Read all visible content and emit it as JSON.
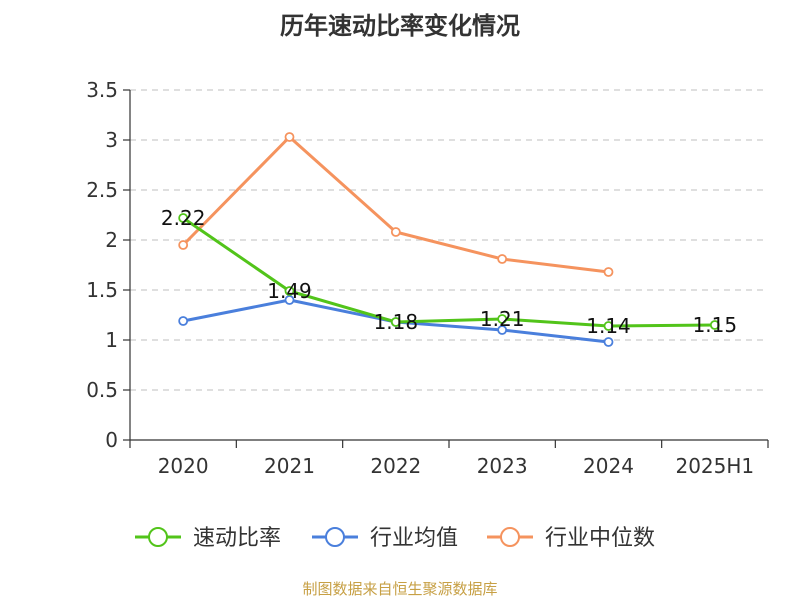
{
  "chart_data": {
    "type": "line",
    "title": "历年速动比率变化情况",
    "categories": [
      "2020",
      "2021",
      "2022",
      "2023",
      "2024",
      "2025H1"
    ],
    "ylim": [
      0,
      3.5
    ],
    "yticks": [
      "0",
      "0.5",
      "1",
      "1.5",
      "2",
      "2.5",
      "3",
      "3.5"
    ],
    "grid": true,
    "legend_position": "bottom",
    "series": [
      {
        "name": "速动比率",
        "color": "#52c41a",
        "values": [
          2.22,
          1.49,
          1.18,
          1.21,
          1.14,
          1.15
        ],
        "labels": [
          "2.22",
          "1.49",
          "1.18",
          "1.21",
          "1.14",
          "1.15"
        ]
      },
      {
        "name": "行业均值",
        "color": "#4a7fdc",
        "values": [
          1.19,
          1.4,
          1.18,
          1.1,
          0.98,
          null
        ]
      },
      {
        "name": "行业中位数",
        "color": "#f5935e",
        "values": [
          1.95,
          3.03,
          2.08,
          1.81,
          1.68,
          null
        ]
      }
    ]
  },
  "source": "制图数据来自恒生聚源数据库"
}
